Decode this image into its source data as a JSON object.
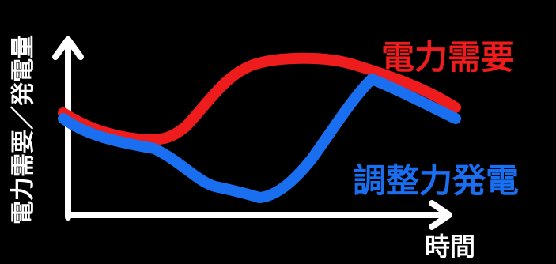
{
  "labels": {
    "demand": "電力需要",
    "adjust": "調整力発電",
    "xaxis": "時間",
    "yaxis": "電力需要／発電量"
  },
  "colors": {
    "background": "#000000",
    "demand": "#ee1c1c",
    "adjust": "#1a6ef0",
    "axis": "#ffffff"
  }
}
